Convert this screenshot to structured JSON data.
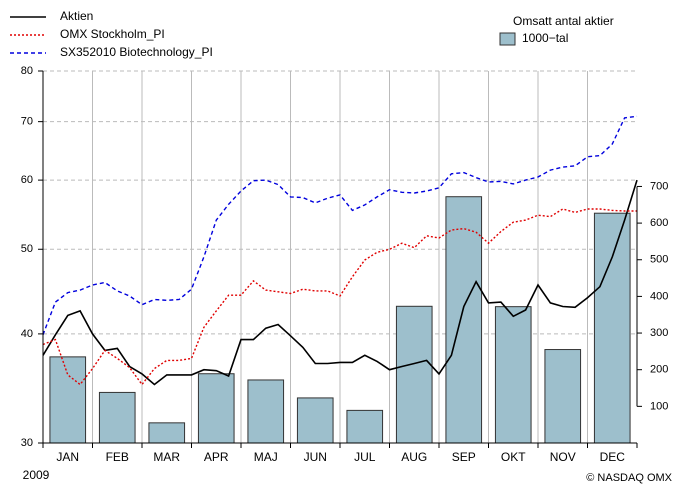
{
  "chart_data": {
    "type": "line",
    "ylog": true,
    "grid": true,
    "xlim": [
      0,
      12
    ],
    "ylim": [
      30,
      80
    ],
    "yticks": [
      30,
      40,
      50,
      60,
      70,
      80
    ],
    "y2lim": [
      0,
      1015
    ],
    "y2ticks": [
      100,
      200,
      300,
      400,
      500,
      600,
      700
    ],
    "categories": [
      "JAN",
      "FEB",
      "MAR",
      "APR",
      "MAJ",
      "JUN",
      "JUL",
      "AUG",
      "SEP",
      "OKT",
      "NOV",
      "DEC"
    ],
    "x": [
      0,
      0.25,
      0.5,
      0.75,
      1,
      1.25,
      1.5,
      1.75,
      2,
      2.25,
      2.5,
      2.75,
      3,
      3.25,
      3.5,
      3.75,
      4,
      4.25,
      4.5,
      4.75,
      5,
      5.25,
      5.5,
      5.75,
      6,
      6.25,
      6.5,
      6.75,
      7,
      7.25,
      7.5,
      7.75,
      8,
      8.25,
      8.5,
      8.75,
      9,
      9.25,
      9.5,
      9.75,
      10,
      10.25,
      10.5,
      10.75,
      11,
      11.25,
      11.5,
      11.75,
      12
    ],
    "series": [
      {
        "name": "Aktien",
        "color": "#000000",
        "dash": "solid",
        "values": [
          37.8,
          39.9,
          42.0,
          42.5,
          40.0,
          38.3,
          38.5,
          36.7,
          36.0,
          35.0,
          35.9,
          35.9,
          35.9,
          36.4,
          36.3,
          35.8,
          39.4,
          39.4,
          40.6,
          41.0,
          39.8,
          38.6,
          37.0,
          37.0,
          37.1,
          37.1,
          37.8,
          37.2,
          36.4,
          36.7,
          37.0,
          37.3,
          36.0,
          37.8,
          43.0,
          45.9,
          43.4,
          43.5,
          41.9,
          42.6,
          45.5,
          43.4,
          43.0,
          42.9,
          44.0,
          45.3,
          49.0,
          54.0,
          60.0
        ]
      },
      {
        "name": "OMX Stockholm_PI",
        "color": "#e00000",
        "dash": "dotted",
        "values": [
          38.9,
          39.4,
          35.9,
          35.0,
          36.5,
          38.3,
          37.5,
          36.6,
          35.0,
          36.5,
          37.3,
          37.3,
          37.5,
          40.7,
          42.5,
          44.3,
          44.3,
          46.0,
          44.9,
          44.7,
          44.5,
          45.0,
          44.8,
          44.8,
          44.2,
          46.5,
          48.6,
          49.6,
          50.0,
          50.8,
          50.2,
          51.8,
          51.5,
          52.6,
          52.8,
          52.3,
          50.8,
          52.4,
          53.7,
          54.0,
          54.7,
          54.5,
          55.6,
          55.1,
          55.6,
          55.6,
          55.4,
          55.3,
          55.3
        ]
      },
      {
        "name": "SX352010 Biotechnology_PI",
        "color": "#0000dd",
        "dash": "dashed",
        "values": [
          39.9,
          43.5,
          44.6,
          44.9,
          45.5,
          45.8,
          44.8,
          44.2,
          43.2,
          43.8,
          43.7,
          43.8,
          45.0,
          49.0,
          54.0,
          56.3,
          58.3,
          59.9,
          60.0,
          59.3,
          57.4,
          57.3,
          56.5,
          57.2,
          57.7,
          55.4,
          56.2,
          57.4,
          58.5,
          58.1,
          58.0,
          58.3,
          58.8,
          61.0,
          61.2,
          60.4,
          59.7,
          59.8,
          59.4,
          60.0,
          60.5,
          61.6,
          62.1,
          62.3,
          63.8,
          64.0,
          66.0,
          70.7,
          71.0
        ]
      },
      {
        "name": "1000−tal",
        "type": "bar",
        "axis": "y2",
        "color": "#9dbfcc",
        "values": [
          235,
          138,
          55,
          189,
          172,
          123,
          89,
          373,
          672,
          372,
          255,
          627
        ]
      }
    ],
    "legend_title": "Omsatt antal aktier",
    "year_label": "2009",
    "source": "© NASDAQ OMX"
  }
}
